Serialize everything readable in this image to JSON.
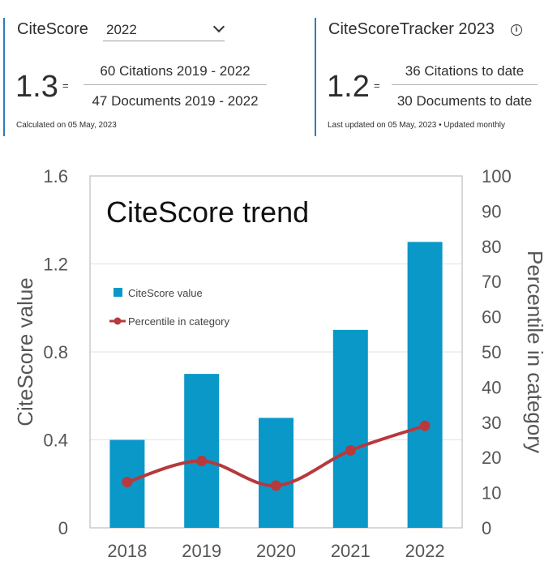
{
  "citescore": {
    "label": "CiteScore",
    "year": "2022",
    "value": "1.3",
    "equals": "=",
    "numerator": "60 Citations 2019 - 2022",
    "denominator": "47 Documents 2019 - 2022",
    "calculated": "Calculated on 05 May, 2023"
  },
  "tracker": {
    "label": "CiteScoreTracker 2023",
    "info_icon": "info-icon",
    "value": "1.2",
    "equals": "=",
    "numerator": "36 Citations to date",
    "denominator": "30 Documents to date",
    "updated": "Last updated on 05 May, 2023 • Updated monthly"
  },
  "chart_data": {
    "type": "bar",
    "title": "CiteScore trend",
    "categories": [
      "2018",
      "2019",
      "2020",
      "2021",
      "2022"
    ],
    "series": [
      {
        "name": "CiteScore value",
        "type": "bar",
        "axis": "left",
        "color": "#0a98c8",
        "values": [
          0.4,
          0.7,
          0.5,
          0.9,
          1.3
        ]
      },
      {
        "name": "Percentile in category",
        "type": "line",
        "axis": "right",
        "color": "#b7393d",
        "values": [
          13,
          19,
          12,
          22,
          29
        ]
      }
    ],
    "ylabel": "CiteScore value",
    "ylim": [
      0,
      1.6
    ],
    "yticks": [
      "0",
      "0.4",
      "0.8",
      "1.2",
      "1.6"
    ],
    "y2label": "Percentile in category",
    "y2lim": [
      0,
      100
    ],
    "y2ticks": [
      "0",
      "10",
      "20",
      "30",
      "40",
      "50",
      "60",
      "70",
      "80",
      "90",
      "100"
    ],
    "grid": "horizontal",
    "legend": "left"
  }
}
